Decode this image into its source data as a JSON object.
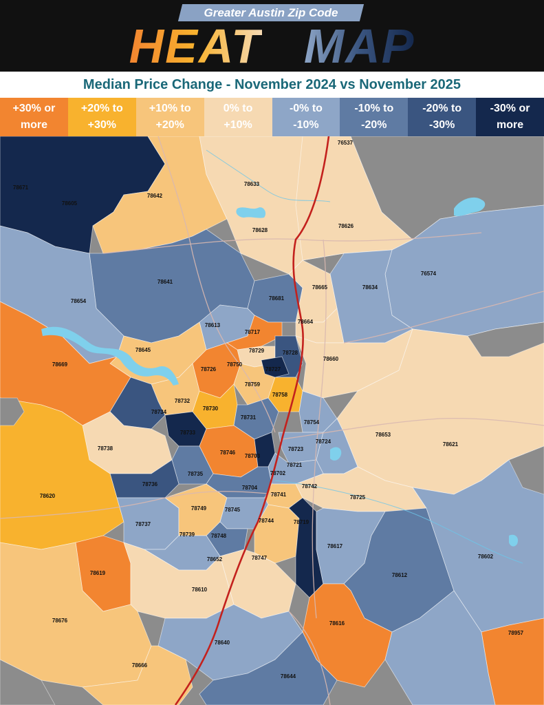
{
  "header": {
    "tag": "Greater Austin Zip Code",
    "title_part1": "HEAT",
    "title_part2": "MAP",
    "subtitle": "Median Price Change - November 2024 vs November 2025"
  },
  "legend": [
    {
      "label": "+30% or\nmore",
      "color": "#f28530"
    },
    {
      "label": "+20% to\n+30%",
      "color": "#f8b22e"
    },
    {
      "label": "+10% to\n+20%",
      "color": "#f7c57b"
    },
    {
      "label": "0% to\n+10%",
      "color": "#f6d9b2"
    },
    {
      "label": "-0% to\n-10%",
      "color": "#8ea6c7"
    },
    {
      "label": "-10% to\n-20%",
      "color": "#5f7ba3"
    },
    {
      "label": "-20% to\n-30%",
      "color": "#3a5580"
    },
    {
      "label": "-30% or\nmore",
      "color": "#14284d"
    }
  ],
  "zip_labels": [
    "76537",
    "78633",
    "78642",
    "78671",
    "78605",
    "78628",
    "78626",
    "76574",
    "78641",
    "78654",
    "78681",
    "78665",
    "78634",
    "78664",
    "78613",
    "78717",
    "78729",
    "78728",
    "78660",
    "78645",
    "78669",
    "78726",
    "78750",
    "78727",
    "78759",
    "78758",
    "78732",
    "78730",
    "78734",
    "78731",
    "78754",
    "78733",
    "78738",
    "78746",
    "78703",
    "78723",
    "78724",
    "78653",
    "78621",
    "78735",
    "78721",
    "78702",
    "78736",
    "78704",
    "78741",
    "78742",
    "78725",
    "78620",
    "78749",
    "78745",
    "78737",
    "78739",
    "78748",
    "78744",
    "78719",
    "78617",
    "78652",
    "78747",
    "78619",
    "78612",
    "78602",
    "78610",
    "78676",
    "78616",
    "78640",
    "78957",
    "78666",
    "78644"
  ]
}
